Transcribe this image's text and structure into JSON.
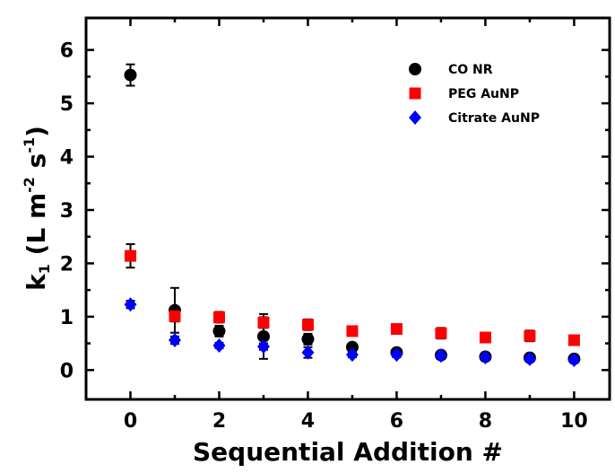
{
  "chart_data": {
    "type": "scatter",
    "xlabel": "Sequential Addition #",
    "ylabel_parts": {
      "main": "k",
      "sub": "1",
      "unit_a": " (L m",
      "sup_a": "-2",
      "unit_b": " s",
      "sup_b": "-1",
      "unit_c": ")"
    },
    "xlim": [
      -1,
      10.8
    ],
    "ylim": [
      -0.55,
      6.6
    ],
    "xticks": [
      0,
      2,
      4,
      6,
      8,
      10
    ],
    "yticks": [
      0,
      1,
      2,
      3,
      4,
      5,
      6
    ],
    "legend_position": "top-right",
    "series": [
      {
        "name": "CO NR",
        "marker": "circle",
        "color": "#000000",
        "x": [
          0,
          1,
          2,
          3,
          4,
          5,
          6,
          7,
          8,
          9,
          10
        ],
        "y": [
          5.53,
          1.12,
          0.73,
          0.63,
          0.58,
          0.43,
          0.33,
          0.28,
          0.25,
          0.23,
          0.21
        ],
        "err": [
          0.2,
          0.42,
          0.1,
          0.42,
          0.1,
          0.05,
          0.05,
          0.05,
          0.05,
          0.05,
          0.05
        ]
      },
      {
        "name": "PEG AuNP",
        "marker": "square",
        "color": "#ff0000",
        "x": [
          0,
          1,
          2,
          3,
          4,
          5,
          6,
          7,
          8,
          9,
          10
        ],
        "y": [
          2.14,
          1.01,
          0.99,
          0.89,
          0.85,
          0.73,
          0.77,
          0.69,
          0.61,
          0.64,
          0.56
        ],
        "err": [
          0.22,
          0.1,
          0.1,
          0.1,
          0.1,
          0.07,
          0.08,
          0.1,
          0.06,
          0.1,
          0.08
        ]
      },
      {
        "name": "Citrate AuNP",
        "marker": "diamond",
        "color": "#0000ff",
        "x": [
          0,
          1,
          2,
          3,
          4,
          5,
          6,
          7,
          8,
          9,
          10
        ],
        "y": [
          1.23,
          0.56,
          0.46,
          0.44,
          0.33,
          0.29,
          0.29,
          0.27,
          0.24,
          0.21,
          0.19
        ],
        "err": [
          0.07,
          0.07,
          0.05,
          0.06,
          0.1,
          0.05,
          0.05,
          0.05,
          0.05,
          0.04,
          0.04
        ]
      }
    ]
  }
}
